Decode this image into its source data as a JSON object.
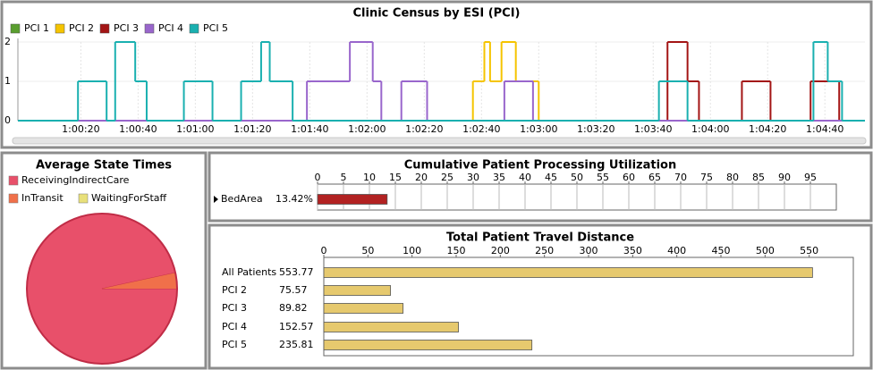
{
  "chart_data": [
    {
      "type": "line",
      "step": "post",
      "title": "Clinic Census by ESI (PCI)",
      "xlim": [
        3598,
        3894
      ],
      "xticks": [
        {
          "value": 3620,
          "label": "1:00:20"
        },
        {
          "value": 3640,
          "label": "1:00:40"
        },
        {
          "value": 3660,
          "label": "1:01:00"
        },
        {
          "value": 3680,
          "label": "1:01:20"
        },
        {
          "value": 3700,
          "label": "1:01:40"
        },
        {
          "value": 3720,
          "label": "1:02:00"
        },
        {
          "value": 3740,
          "label": "1:02:20"
        },
        {
          "value": 3760,
          "label": "1:02:40"
        },
        {
          "value": 3780,
          "label": "1:03:00"
        },
        {
          "value": 3800,
          "label": "1:03:20"
        },
        {
          "value": 3820,
          "label": "1:03:40"
        },
        {
          "value": 3840,
          "label": "1:04:00"
        },
        {
          "value": 3860,
          "label": "1:04:20"
        },
        {
          "value": 3880,
          "label": "1:04:40"
        }
      ],
      "ylim": [
        0,
        2
      ],
      "yticks": [
        0,
        1,
        2
      ],
      "grid": true,
      "series": [
        {
          "name": "PCI 1",
          "color": "#5a9e2f",
          "x": [
            3598
          ],
          "values": [
            0
          ]
        },
        {
          "name": "PCI 2",
          "color": "#f5c400",
          "x": [
            3598,
            3757,
            3761,
            3763,
            3767,
            3772,
            3780
          ],
          "values": [
            0,
            1,
            2,
            1,
            2,
            1,
            0
          ]
        },
        {
          "name": "PCI 3",
          "color": "#a31515",
          "x": [
            3598,
            3825,
            3832,
            3836,
            3851,
            3861,
            3875,
            3885
          ],
          "values": [
            0,
            2,
            1,
            0,
            1,
            0,
            1,
            0
          ]
        },
        {
          "name": "PCI 4",
          "color": "#9966cc",
          "x": [
            3598,
            3699,
            3714,
            3722,
            3725,
            3732,
            3741,
            3768,
            3778
          ],
          "values": [
            0,
            1,
            2,
            1,
            0,
            1,
            0,
            1,
            0
          ]
        },
        {
          "name": "PCI 5",
          "color": "#1ab0b0",
          "x": [
            3598,
            3619,
            3629,
            3632,
            3639,
            3643,
            3656,
            3666,
            3676,
            3683,
            3686,
            3694,
            3822,
            3832,
            3876,
            3881,
            3886
          ],
          "values": [
            0,
            1,
            0,
            2,
            1,
            0,
            1,
            0,
            1,
            2,
            1,
            0,
            1,
            0,
            2,
            1,
            0
          ]
        }
      ]
    },
    {
      "type": "pie",
      "title": "Average State Times",
      "categories": [
        "ReceivingIndirectCare",
        "InTransit",
        "WaitingForStaff"
      ],
      "values": [
        96.6,
        3.4,
        0
      ],
      "colors": [
        "#e8506a",
        "#f0704a",
        "#e8e07a"
      ]
    },
    {
      "type": "hbar",
      "title": "Cumulative Patient Processing Utilization",
      "categories": [
        "BedArea"
      ],
      "values": [
        13.42
      ],
      "value_labels": [
        "13.42%"
      ],
      "color": "#b22222",
      "xlim": [
        0,
        100
      ],
      "xticks": [
        0,
        5,
        10,
        15,
        20,
        25,
        30,
        35,
        40,
        45,
        50,
        55,
        60,
        65,
        70,
        75,
        80,
        85,
        90,
        95
      ],
      "grid": true
    },
    {
      "type": "hbar",
      "title": "Total Patient Travel Distance",
      "categories": [
        "All Patients",
        "PCI 2",
        "PCI 3",
        "PCI 4",
        "PCI 5"
      ],
      "values": [
        553.77,
        75.57,
        89.82,
        152.57,
        235.81
      ],
      "color": "#e6c96e",
      "xlim": [
        0,
        600
      ],
      "xticks": [
        0,
        50,
        100,
        150,
        200,
        250,
        300,
        350,
        400,
        450,
        500,
        550
      ],
      "grid": false
    }
  ]
}
